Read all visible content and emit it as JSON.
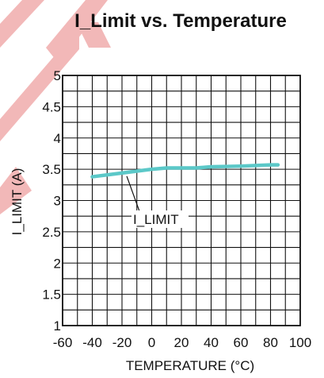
{
  "chart_data": {
    "type": "line",
    "title": "I_Limit vs. Temperature",
    "xlabel": "TEMPERATURE (°C)",
    "ylabel": "I_LIMIT (A)",
    "xlim": [
      -60,
      100
    ],
    "ylim": [
      1,
      5
    ],
    "x_ticks": [
      -60,
      -40,
      -20,
      0,
      20,
      40,
      60,
      80,
      100
    ],
    "x_tick_labels": [
      "-60",
      "-40",
      "-20",
      "0",
      "20",
      "40",
      "60",
      "80",
      "100"
    ],
    "y_ticks": [
      1,
      1.5,
      2,
      2.5,
      3,
      3.5,
      4,
      4.5,
      5
    ],
    "y_tick_labels": [
      "1",
      "1.5",
      "2",
      "2.5",
      "3",
      "3.5",
      "4",
      "4.5",
      "5"
    ],
    "grid": true,
    "series": [
      {
        "name": "I_LIMIT",
        "color": "#5bc8c8",
        "x": [
          -40,
          -20,
          0,
          10,
          20,
          30,
          40,
          60,
          80,
          85
        ],
        "y": [
          3.38,
          3.44,
          3.5,
          3.52,
          3.52,
          3.52,
          3.54,
          3.55,
          3.57,
          3.57
        ]
      }
    ],
    "annotations": [
      {
        "text": "I_LIMIT",
        "points_to_x": -20
      }
    ]
  },
  "colors": {
    "line": "#5bc8c8",
    "watermark": "#f2b8b8",
    "grid": "#111111"
  },
  "watermark_icon": "diagonal-stripes-watermark"
}
